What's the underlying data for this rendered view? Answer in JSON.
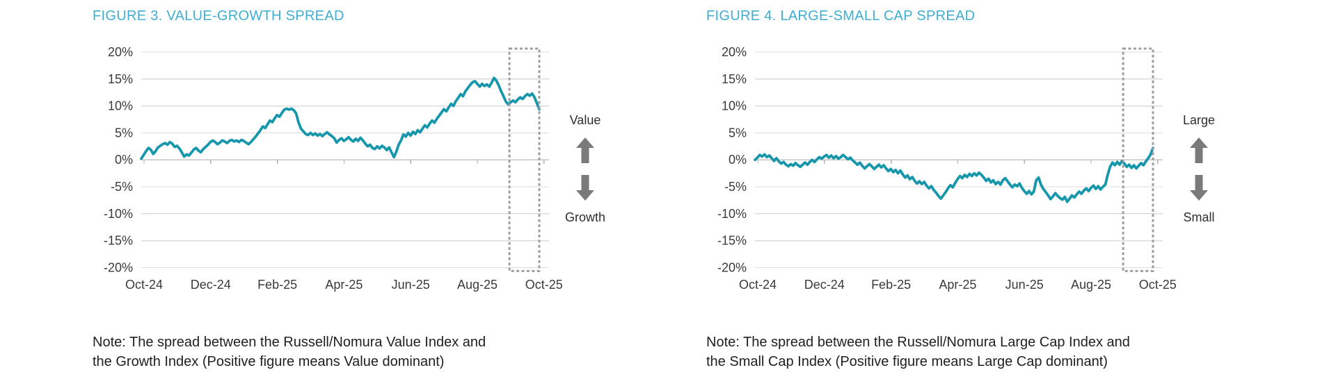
{
  "styles": {
    "line_teal": "#1797AB",
    "title_blue": "#3FAED2",
    "grid_gray": "#DCDCDC",
    "zero_axis_gray": "#C6C6C6",
    "tick_gray": "#B0B0B0",
    "highlight_box_gray": "#9E9E9E",
    "arrow_gray": "#7A7A7A",
    "axis_text": "#3A3A3A"
  },
  "chart_data": [
    {
      "type": "line",
      "title": "FIGURE 3. VALUE-GROWTH SPREAD",
      "x_tick_labels": [
        "Oct-24",
        "Dec-24",
        "Feb-25",
        "Apr-25",
        "Jun-25",
        "Aug-25",
        "Oct-25"
      ],
      "y_tick_labels": [
        "20%",
        "15%",
        "10%",
        "5%",
        "0%",
        "-5%",
        "-10%",
        "-15%",
        "-20%"
      ],
      "ylim": [
        -20,
        20
      ],
      "y_step_pct": 5,
      "grid": "horizontal",
      "legend": "none",
      "line_color": "#1797AB",
      "highlight_box": {
        "style": "dashed",
        "covers": "most recent month",
        "x_frac_start": 0.925,
        "x_frac_end": 1.0
      },
      "annotations": {
        "upper": "Value",
        "lower": "Growth"
      },
      "note_lines": [
        "Note: The spread between the Russell/Nomura Value Index and",
        "the Growth Index (Positive figure means Value dominant)"
      ],
      "series": [
        {
          "name": "Value minus Growth spread (%)",
          "values": [
            0.2,
            0.9,
            1.6,
            2.2,
            1.9,
            1.1,
            1.6,
            2.3,
            2.6,
            2.9,
            3.1,
            2.8,
            3.3,
            3.0,
            2.4,
            2.6,
            2.1,
            1.4,
            0.6,
            1.0,
            0.8,
            1.3,
            1.9,
            2.2,
            1.7,
            1.4,
            2.0,
            2.4,
            2.8,
            3.3,
            3.6,
            3.3,
            2.9,
            3.2,
            3.6,
            3.4,
            3.1,
            3.5,
            3.7,
            3.4,
            3.6,
            3.3,
            3.7,
            3.5,
            3.2,
            2.9,
            3.3,
            3.8,
            4.3,
            4.9,
            5.5,
            6.2,
            5.9,
            6.6,
            7.3,
            7.0,
            7.7,
            8.3,
            8.0,
            8.7,
            9.3,
            9.5,
            9.3,
            9.5,
            9.2,
            8.6,
            6.9,
            5.8,
            5.3,
            4.8,
            4.6,
            5.0,
            4.6,
            4.9,
            4.5,
            4.8,
            4.4,
            4.8,
            5.1,
            4.7,
            4.4,
            4.0,
            3.2,
            3.7,
            4.0,
            3.5,
            3.8,
            4.2,
            3.7,
            3.4,
            3.9,
            3.5,
            4.1,
            3.6,
            3.0,
            2.5,
            2.8,
            2.2,
            2.0,
            2.5,
            2.1,
            2.6,
            2.3,
            1.8,
            2.3,
            1.4,
            0.5,
            1.5,
            2.8,
            3.6,
            4.7,
            4.3,
            5.0,
            4.5,
            5.2,
            4.8,
            5.5,
            5.1,
            5.8,
            6.4,
            6.0,
            6.7,
            7.3,
            6.9,
            7.6,
            8.2,
            8.8,
            9.4,
            9.0,
            9.7,
            10.4,
            10.0,
            10.9,
            11.5,
            12.2,
            11.8,
            12.7,
            13.3,
            13.9,
            14.4,
            14.6,
            14.1,
            13.6,
            14.1,
            13.7,
            14.0,
            13.6,
            14.3,
            15.2,
            14.7,
            13.8,
            12.7,
            11.8,
            10.8,
            10.3,
            10.7,
            11.0,
            10.7,
            11.2,
            11.6,
            11.3,
            11.8,
            12.2,
            11.9,
            12.3,
            11.6,
            10.5,
            9.4
          ]
        }
      ]
    },
    {
      "type": "line",
      "title": "FIGURE 4. LARGE-SMALL CAP SPREAD",
      "x_tick_labels": [
        "Oct-24",
        "Dec-24",
        "Feb-25",
        "Apr-25",
        "Jun-25",
        "Aug-25",
        "Oct-25"
      ],
      "y_tick_labels": [
        "20%",
        "15%",
        "10%",
        "5%",
        "0%",
        "-5%",
        "-10%",
        "-15%",
        "-20%"
      ],
      "ylim": [
        -20,
        20
      ],
      "y_step_pct": 5,
      "grid": "horizontal",
      "legend": "none",
      "line_color": "#1797AB",
      "highlight_box": {
        "style": "dashed",
        "covers": "most recent month",
        "x_frac_start": 0.925,
        "x_frac_end": 1.0
      },
      "annotations": {
        "upper": "Large",
        "lower": "Small"
      },
      "note_lines": [
        "Note: The spread between the Russell/Nomura Large Cap Index and",
        "the Small Cap Index (Positive figure means Large Cap dominant)"
      ],
      "series": [
        {
          "name": "Large Cap minus Small Cap spread (%)",
          "values": [
            0.0,
            0.4,
            0.9,
            0.6,
            1.0,
            0.5,
            0.8,
            0.3,
            -0.2,
            0.3,
            -0.3,
            -0.7,
            -0.4,
            -0.9,
            -1.2,
            -0.8,
            -1.1,
            -0.6,
            -1.0,
            -1.3,
            -0.9,
            -0.5,
            -0.9,
            -0.4,
            0.0,
            -0.4,
            0.1,
            0.5,
            0.2,
            0.6,
            0.9,
            0.4,
            0.8,
            0.3,
            0.7,
            0.2,
            0.5,
            0.9,
            0.5,
            0.1,
            0.4,
            -0.1,
            -0.5,
            -0.9,
            -0.5,
            -1.1,
            -1.6,
            -1.2,
            -0.8,
            -1.2,
            -1.7,
            -1.3,
            -0.9,
            -1.4,
            -1.0,
            -1.6,
            -2.1,
            -1.7,
            -2.3,
            -1.9,
            -2.5,
            -2.0,
            -2.7,
            -3.3,
            -2.9,
            -3.6,
            -3.2,
            -3.9,
            -4.4,
            -4.0,
            -4.5,
            -4.1,
            -4.8,
            -5.3,
            -4.9,
            -5.6,
            -6.1,
            -6.7,
            -7.2,
            -6.6,
            -6.0,
            -5.3,
            -4.7,
            -5.1,
            -4.3,
            -3.6,
            -3.0,
            -3.4,
            -2.8,
            -3.2,
            -2.6,
            -3.0,
            -2.5,
            -2.9,
            -2.4,
            -2.8,
            -3.3,
            -3.9,
            -3.5,
            -4.2,
            -3.8,
            -4.5,
            -4.1,
            -4.6,
            -3.8,
            -3.4,
            -4.0,
            -4.6,
            -5.1,
            -4.6,
            -4.9,
            -4.4,
            -5.2,
            -5.8,
            -6.3,
            -5.8,
            -6.4,
            -5.9,
            -3.8,
            -3.3,
            -4.6,
            -5.4,
            -6.0,
            -6.6,
            -7.3,
            -6.8,
            -6.2,
            -6.7,
            -7.1,
            -7.4,
            -6.9,
            -7.8,
            -7.2,
            -6.6,
            -7.0,
            -6.4,
            -5.9,
            -6.3,
            -5.7,
            -5.3,
            -5.8,
            -5.2,
            -4.8,
            -5.4,
            -4.9,
            -5.5,
            -5.0,
            -4.6,
            -2.8,
            -1.3,
            -0.5,
            -1.0,
            -0.4,
            -0.9,
            -0.2,
            -0.7,
            -1.3,
            -0.9,
            -1.5,
            -1.0,
            -1.6,
            -1.1,
            -0.6,
            -1.0,
            -0.3,
            0.3,
            1.0,
            2.2
          ]
        }
      ]
    }
  ]
}
